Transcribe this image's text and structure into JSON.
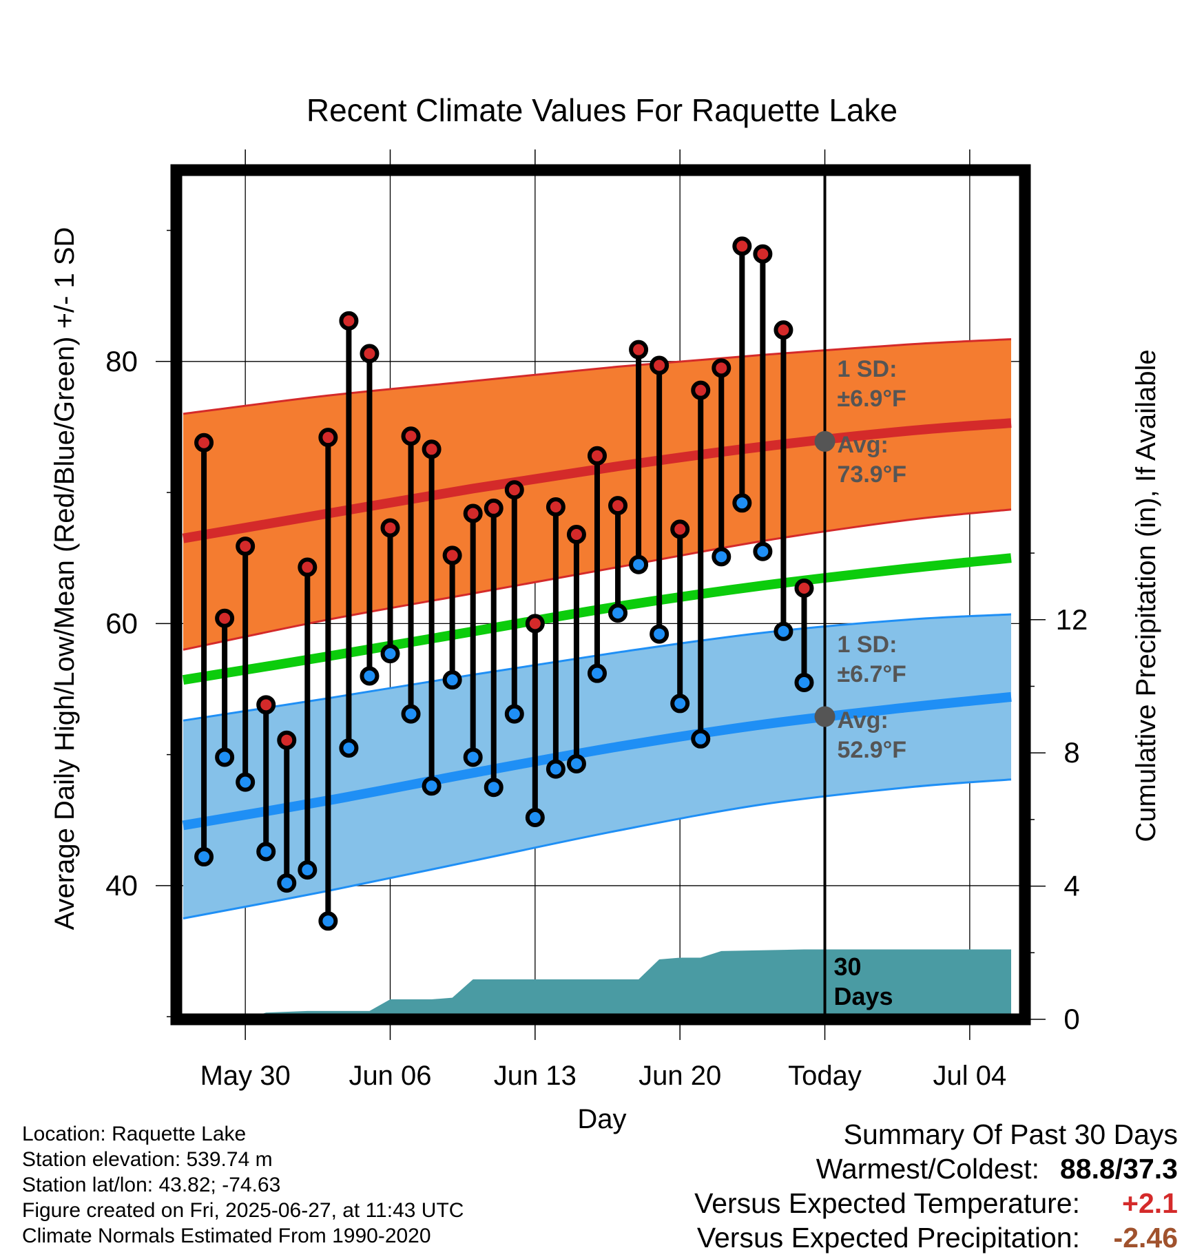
{
  "chart_data": {
    "type": "line",
    "title": "Recent Climate Values For Raquette Lake",
    "xlabel": "Day",
    "ylabel": "Average Daily High/Low/Mean (Red/Blue/Green) +/- 1 SD",
    "ylabel_right": "Cumulative Precipitation (in), If Available",
    "x_ticks": [
      "May 30",
      "Jun 06",
      "Jun 13",
      "Jun 20",
      "Today",
      "Jul 04"
    ],
    "x_tick_dates": [
      "2025-05-30",
      "2025-06-06",
      "2025-06-13",
      "2025-06-20",
      "2025-06-27",
      "2025-07-04"
    ],
    "xlim": [
      "2025-05-26 16:00",
      "2025-07-06 16:00"
    ],
    "ylim": [
      29.8,
      94.6
    ],
    "y_ticks": [
      40,
      60,
      80
    ],
    "y2lim": [
      0,
      25.5
    ],
    "y2_ticks": [
      0,
      4,
      8,
      12
    ],
    "grid": true,
    "colors": {
      "high_band": "#f47c30",
      "high_mean": "#d42a2a",
      "high_band_edge": "#d42a2a",
      "low_band": "#85c1e9",
      "low_mean": "#1f8ff5",
      "low_band_edge": "#1f8ff5",
      "mean": "#0ccc0c",
      "precip": "#4a9ba3",
      "high_marker": "#d42a2a",
      "low_marker": "#1f8ff5",
      "today_marker": "#555555",
      "annotation": "#555555"
    },
    "normals": {
      "dates": [
        "2025-05-27",
        "2025-06-03",
        "2025-06-10",
        "2025-06-17",
        "2025-06-24",
        "2025-07-01",
        "2025-07-06"
      ],
      "high_mean": [
        66.5,
        68.4,
        70.3,
        72.0,
        73.5,
        74.7,
        75.3
      ],
      "high_upper": [
        76.0,
        77.4,
        78.5,
        79.6,
        80.5,
        81.3,
        81.7
      ],
      "high_lower": [
        58.0,
        60.3,
        62.3,
        64.3,
        66.3,
        67.9,
        68.7
      ],
      "mean": [
        55.7,
        57.5,
        59.4,
        61.3,
        62.9,
        64.2,
        65.0
      ],
      "low_mean": [
        44.6,
        46.5,
        48.6,
        50.6,
        52.3,
        53.6,
        54.4
      ],
      "low_upper": [
        52.6,
        54.3,
        56.1,
        57.8,
        59.3,
        60.3,
        60.7
      ],
      "low_lower": [
        37.5,
        39.6,
        41.9,
        44.2,
        46.2,
        47.5,
        48.1
      ]
    },
    "daily": {
      "dates": [
        "2025-05-28",
        "2025-05-29",
        "2025-05-30",
        "2025-05-31",
        "2025-06-01",
        "2025-06-02",
        "2025-06-03",
        "2025-06-04",
        "2025-06-05",
        "2025-06-06",
        "2025-06-07",
        "2025-06-08",
        "2025-06-09",
        "2025-06-10",
        "2025-06-11",
        "2025-06-12",
        "2025-06-13",
        "2025-06-14",
        "2025-06-15",
        "2025-06-16",
        "2025-06-17",
        "2025-06-18",
        "2025-06-19",
        "2025-06-20",
        "2025-06-21",
        "2025-06-22",
        "2025-06-23",
        "2025-06-24",
        "2025-06-25",
        "2025-06-26"
      ],
      "highs": [
        73.8,
        60.4,
        65.9,
        53.8,
        51.1,
        64.3,
        74.2,
        83.1,
        80.6,
        67.3,
        74.3,
        73.3,
        65.2,
        68.4,
        68.8,
        70.2,
        60.0,
        68.9,
        66.8,
        72.8,
        69.0,
        80.9,
        79.7,
        67.2,
        77.8,
        79.5,
        88.8,
        88.2,
        82.4,
        62.7
      ],
      "lows": [
        42.2,
        49.8,
        47.9,
        42.6,
        40.2,
        41.2,
        37.3,
        50.5,
        56.0,
        57.7,
        53.1,
        47.6,
        55.7,
        49.8,
        47.5,
        53.1,
        45.2,
        48.9,
        49.3,
        56.2,
        60.8,
        64.5,
        59.2,
        53.9,
        51.2,
        65.1,
        69.2,
        65.5,
        59.4,
        55.5
      ]
    },
    "precip_cumulative": {
      "dates": [
        "2025-05-26",
        "2025-05-30",
        "2025-05-31",
        "2025-06-02",
        "2025-06-04",
        "2025-06-05",
        "2025-06-06",
        "2025-06-08",
        "2025-06-09",
        "2025-06-10",
        "2025-06-18",
        "2025-06-19",
        "2025-06-20",
        "2025-06-21",
        "2025-06-22",
        "2025-06-26",
        "2025-07-06"
      ],
      "values": [
        0,
        0,
        0.2,
        0.25,
        0.25,
        0.25,
        0.6,
        0.6,
        0.65,
        1.2,
        1.2,
        1.8,
        1.85,
        1.85,
        2.05,
        2.1,
        2.1
      ]
    },
    "today": {
      "date": "2025-06-27",
      "label": "Today",
      "avg_high": 73.9,
      "avg_low": 52.9
    },
    "annotations": {
      "high_sd_title": "1 SD:",
      "high_sd_value": "±6.9°F",
      "high_avg_title": "Avg:",
      "high_avg_value": "73.9°F",
      "low_sd_title": "1 SD:",
      "low_sd_value": "±6.7°F",
      "low_avg_title": "Avg:",
      "low_avg_value": "52.9°F",
      "period_line1": "30",
      "period_line2": "Days"
    }
  },
  "meta": {
    "location": "Location: Raquette Lake",
    "elevation": "Station elevation: 539.74 m",
    "latlon": "Station lat/lon: 43.82; -74.63",
    "created": "Figure created on Fri, 2025-06-27, at 11:43 UTC",
    "normals": "Climate Normals Estimated From 1990-2020"
  },
  "summary": {
    "title": "Summary Of Past 30 Days",
    "warm_cold_label": "Warmest/Coldest:",
    "warm_cold_value": "88.8/37.3",
    "temp_label": "Versus Expected Temperature:",
    "temp_value": "+2.1",
    "temp_color": "#d42a2a",
    "precip_label": "Versus Expected Precipitation:",
    "precip_value": "-2.46",
    "precip_color": "#a0522d"
  }
}
